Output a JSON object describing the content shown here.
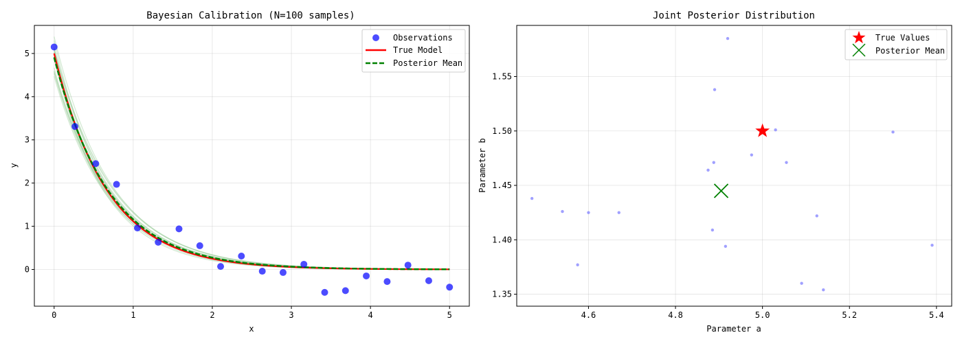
{
  "chart_data": [
    {
      "type": "scatter",
      "title": "Bayesian Calibration (N=100 samples)",
      "xlabel": "x",
      "ylabel": "y",
      "xlim": [
        -0.25,
        5.25
      ],
      "ylim": [
        -0.85,
        5.65
      ],
      "xticks": [
        0,
        1,
        2,
        3,
        4,
        5
      ],
      "yticks": [
        0,
        1,
        2,
        3,
        4,
        5
      ],
      "grid": true,
      "legend_position": "top-right",
      "colors": {
        "observations": "#0000ff",
        "true_model": "#ff0000",
        "posterior_mean": "#008000",
        "samples": "#80c080"
      },
      "observations": {
        "name": "Observations",
        "x": [
          0.0,
          0.263,
          0.526,
          0.789,
          1.053,
          1.316,
          1.579,
          1.842,
          2.105,
          2.368,
          2.632,
          2.895,
          3.158,
          3.421,
          3.684,
          3.947,
          4.211,
          4.474,
          4.737,
          5.0
        ],
        "y": [
          5.15,
          3.31,
          2.45,
          1.97,
          0.96,
          0.63,
          0.94,
          0.55,
          0.07,
          0.31,
          -0.04,
          -0.07,
          0.12,
          -0.53,
          -0.49,
          -0.15,
          -0.28,
          0.1,
          -0.26,
          -0.41
        ]
      },
      "true_model": {
        "name": "True Model",
        "a": 5.0,
        "b": 1.5
      },
      "posterior_mean": {
        "name": "Posterior Mean",
        "a": 4.91,
        "b": 1.445
      },
      "posterior_samples": [
        {
          "a": 4.47,
          "b": 1.438
        },
        {
          "a": 4.54,
          "b": 1.426
        },
        {
          "a": 4.575,
          "b": 1.377
        },
        {
          "a": 4.6,
          "b": 1.425
        },
        {
          "a": 4.67,
          "b": 1.425
        },
        {
          "a": 4.875,
          "b": 1.464
        },
        {
          "a": 4.885,
          "b": 1.409
        },
        {
          "a": 4.888,
          "b": 1.471
        },
        {
          "a": 4.89,
          "b": 1.538
        },
        {
          "a": 4.915,
          "b": 1.394
        },
        {
          "a": 4.92,
          "b": 1.585
        },
        {
          "a": 4.975,
          "b": 1.478
        },
        {
          "a": 5.03,
          "b": 1.501
        },
        {
          "a": 5.055,
          "b": 1.471
        },
        {
          "a": 5.09,
          "b": 1.36
        },
        {
          "a": 5.125,
          "b": 1.422
        },
        {
          "a": 5.14,
          "b": 1.354
        },
        {
          "a": 5.3,
          "b": 1.499
        },
        {
          "a": 5.39,
          "b": 1.395
        }
      ]
    },
    {
      "type": "scatter",
      "title": "Joint Posterior Distribution",
      "xlabel": "Parameter a",
      "ylabel": "Parameter b",
      "xlim": [
        4.435,
        5.435
      ],
      "ylim": [
        1.339,
        1.597
      ],
      "xticks": [
        4.6,
        4.8,
        5.0,
        5.2,
        5.4
      ],
      "yticks": [
        1.35,
        1.4,
        1.45,
        1.5,
        1.55
      ],
      "grid": true,
      "legend_position": "top-right",
      "colors": {
        "samples": "#8080ff",
        "true_values": "#ff0000",
        "posterior_mean": "#008000"
      },
      "true_values": {
        "name": "True Values",
        "a": 5.0,
        "b": 1.5
      },
      "posterior_mean": {
        "name": "Posterior Mean",
        "a": 4.905,
        "b": 1.445
      }
    }
  ]
}
